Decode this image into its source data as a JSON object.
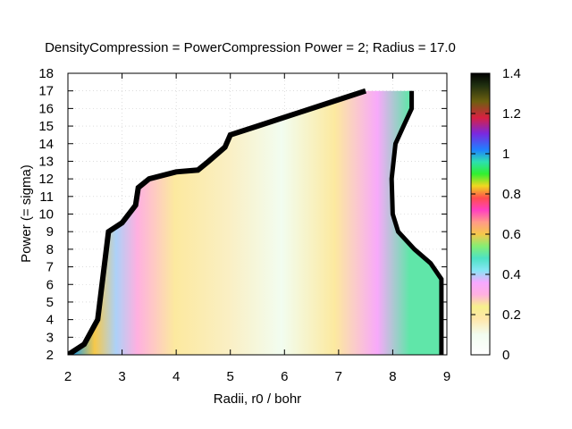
{
  "chart_data": {
    "type": "heatmap",
    "title": "DensityCompression = PowerCompression Power = 2; Radius = 17.0",
    "xlabel": "Radii, r0 / bohr",
    "ylabel": "Power (= sigma)",
    "xlim": [
      2,
      9
    ],
    "ylim": [
      2,
      18
    ],
    "xticks": [
      "2",
      "3",
      "4",
      "5",
      "6",
      "7",
      "8",
      "9"
    ],
    "yticks": [
      "2",
      "3",
      "4",
      "5",
      "6",
      "7",
      "8",
      "9",
      "10",
      "11",
      "12",
      "13",
      "14",
      "15",
      "16",
      "17",
      "18"
    ],
    "grid": true,
    "colorbar": {
      "range": [
        0,
        1.4
      ],
      "ticks": [
        "0",
        "0.2",
        "0.4",
        "0.6",
        "0.8",
        "1",
        "1.2",
        "1.4"
      ],
      "palette": "cyclic rainbow (white at 0, black at 1.4)"
    },
    "region": {
      "note": "estimated boundary of the colored (defined) region; outside is blank",
      "left_boundary": [
        [
          2.0,
          2.0
        ],
        [
          2.3,
          2.6
        ],
        [
          2.55,
          4.0
        ],
        [
          2.75,
          9.0
        ],
        [
          3.0,
          9.5
        ],
        [
          3.25,
          10.5
        ],
        [
          3.3,
          11.5
        ],
        [
          3.5,
          12.0
        ],
        [
          4.0,
          12.4
        ],
        [
          4.4,
          12.5
        ],
        [
          4.6,
          13.0
        ],
        [
          4.9,
          13.8
        ],
        [
          5.0,
          14.5
        ],
        [
          5.5,
          15.0
        ],
        [
          6.3,
          15.8
        ],
        [
          7.0,
          16.5
        ],
        [
          7.5,
          17.0
        ]
      ],
      "right_boundary": [
        [
          8.35,
          17.0
        ],
        [
          8.35,
          16.0
        ],
        [
          8.2,
          15.0
        ],
        [
          8.05,
          14.0
        ],
        [
          7.98,
          12.0
        ],
        [
          8.0,
          10.0
        ],
        [
          8.1,
          9.0
        ],
        [
          8.4,
          8.0
        ],
        [
          8.7,
          7.2
        ],
        [
          8.9,
          6.3
        ],
        [
          8.9,
          2.0
        ]
      ],
      "boundary_value": 1.4
    },
    "value_bands": [
      {
        "x": 2.1,
        "value": 1.0
      },
      {
        "x": 2.5,
        "value": 0.6
      },
      {
        "x": 2.9,
        "value": 0.4
      },
      {
        "x": 3.3,
        "value": 0.3
      },
      {
        "x": 4.0,
        "value": 0.2
      },
      {
        "x": 5.0,
        "value": 0.15
      },
      {
        "x": 6.0,
        "value": 0.1
      },
      {
        "x": 7.0,
        "value": 0.2
      },
      {
        "x": 7.8,
        "value": 0.35
      },
      {
        "x": 8.4,
        "value": 0.5
      }
    ]
  }
}
